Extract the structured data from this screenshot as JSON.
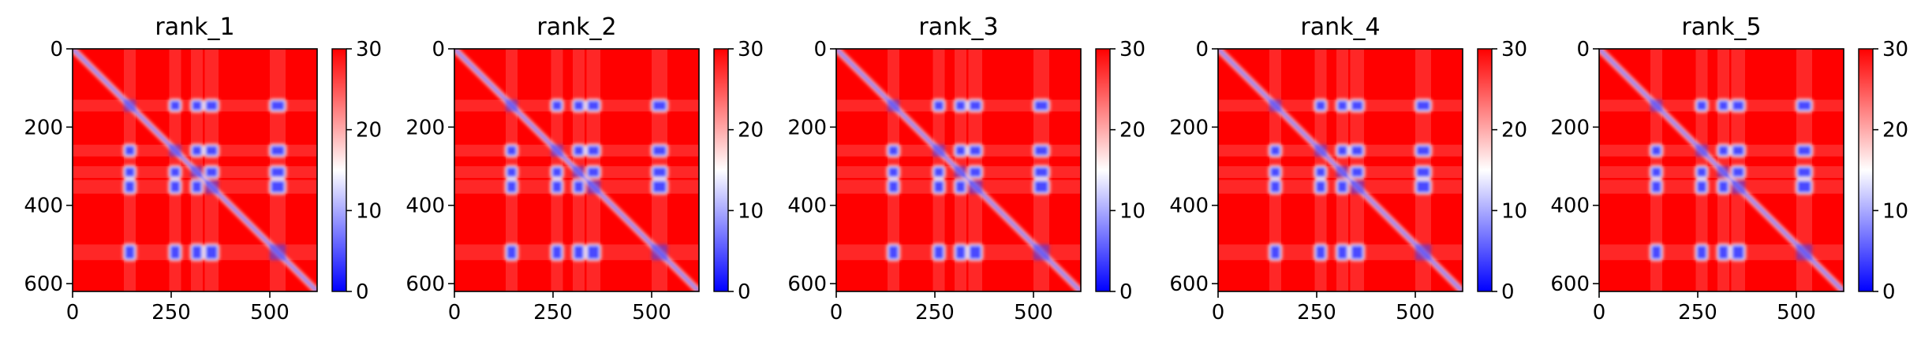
{
  "chart_data": [
    {
      "type": "heatmap",
      "title": "rank_1",
      "n": 620,
      "xticks": [
        0,
        250,
        500
      ],
      "yticks": [
        0,
        200,
        400,
        600
      ],
      "colorbar": {
        "min": 0,
        "max": 30,
        "ticks": [
          0,
          10,
          20,
          30
        ],
        "colors": [
          "#0000ff",
          "#ffffff",
          "#ff0000"
        ]
      },
      "domains": [
        [
          130,
          160
        ],
        [
          245,
          275
        ],
        [
          300,
          330
        ],
        [
          335,
          370
        ],
        [
          500,
          540
        ]
      ],
      "contacts": [
        [
          145,
          255
        ],
        [
          145,
          300
        ],
        [
          145,
          345
        ],
        [
          145,
          515
        ],
        [
          255,
          300
        ],
        [
          255,
          345
        ],
        [
          255,
          515
        ],
        [
          300,
          345
        ],
        [
          300,
          515
        ],
        [
          345,
          515
        ]
      ]
    },
    {
      "type": "heatmap",
      "title": "rank_2",
      "n": 620,
      "xticks": [
        0,
        250,
        500
      ],
      "yticks": [
        0,
        200,
        400,
        600
      ],
      "colorbar": {
        "min": 0,
        "max": 30,
        "ticks": [
          0,
          10,
          20,
          30
        ],
        "colors": [
          "#0000ff",
          "#ffffff",
          "#ff0000"
        ]
      },
      "domains": [
        [
          130,
          160
        ],
        [
          245,
          275
        ],
        [
          300,
          330
        ],
        [
          335,
          370
        ],
        [
          500,
          540
        ]
      ],
      "contacts": [
        [
          145,
          255
        ],
        [
          145,
          300
        ],
        [
          145,
          345
        ],
        [
          145,
          515
        ],
        [
          255,
          300
        ],
        [
          255,
          345
        ],
        [
          255,
          515
        ],
        [
          300,
          345
        ],
        [
          300,
          515
        ],
        [
          345,
          515
        ]
      ]
    },
    {
      "type": "heatmap",
      "title": "rank_3",
      "n": 620,
      "xticks": [
        0,
        250,
        500
      ],
      "yticks": [
        0,
        200,
        400,
        600
      ],
      "colorbar": {
        "min": 0,
        "max": 30,
        "ticks": [
          0,
          10,
          20,
          30
        ],
        "colors": [
          "#0000ff",
          "#ffffff",
          "#ff0000"
        ]
      },
      "domains": [
        [
          130,
          160
        ],
        [
          245,
          275
        ],
        [
          300,
          330
        ],
        [
          335,
          370
        ],
        [
          500,
          540
        ]
      ],
      "contacts": [
        [
          145,
          255
        ],
        [
          145,
          300
        ],
        [
          145,
          345
        ],
        [
          145,
          515
        ],
        [
          255,
          300
        ],
        [
          255,
          345
        ],
        [
          255,
          515
        ],
        [
          300,
          345
        ],
        [
          300,
          515
        ],
        [
          345,
          515
        ]
      ]
    },
    {
      "type": "heatmap",
      "title": "rank_4",
      "n": 620,
      "xticks": [
        0,
        250,
        500
      ],
      "yticks": [
        0,
        200,
        400,
        600
      ],
      "colorbar": {
        "min": 0,
        "max": 30,
        "ticks": [
          0,
          10,
          20,
          30
        ],
        "colors": [
          "#0000ff",
          "#ffffff",
          "#ff0000"
        ]
      },
      "domains": [
        [
          130,
          160
        ],
        [
          245,
          275
        ],
        [
          300,
          330
        ],
        [
          335,
          370
        ],
        [
          500,
          540
        ]
      ],
      "contacts": [
        [
          145,
          255
        ],
        [
          145,
          300
        ],
        [
          145,
          345
        ],
        [
          145,
          515
        ],
        [
          255,
          300
        ],
        [
          255,
          345
        ],
        [
          255,
          515
        ],
        [
          300,
          345
        ],
        [
          300,
          515
        ],
        [
          345,
          515
        ]
      ]
    },
    {
      "type": "heatmap",
      "title": "rank_5",
      "n": 620,
      "xticks": [
        0,
        250,
        500
      ],
      "yticks": [
        0,
        200,
        400,
        600
      ],
      "colorbar": {
        "min": 0,
        "max": 30,
        "ticks": [
          0,
          10,
          20,
          30
        ],
        "colors": [
          "#0000ff",
          "#ffffff",
          "#ff0000"
        ]
      },
      "domains": [
        [
          130,
          160
        ],
        [
          245,
          275
        ],
        [
          300,
          330
        ],
        [
          335,
          370
        ],
        [
          500,
          540
        ]
      ],
      "contacts": [
        [
          145,
          255
        ],
        [
          145,
          300
        ],
        [
          145,
          345
        ],
        [
          145,
          515
        ],
        [
          255,
          300
        ],
        [
          255,
          345
        ],
        [
          255,
          515
        ],
        [
          300,
          345
        ],
        [
          300,
          515
        ],
        [
          345,
          515
        ]
      ]
    }
  ]
}
